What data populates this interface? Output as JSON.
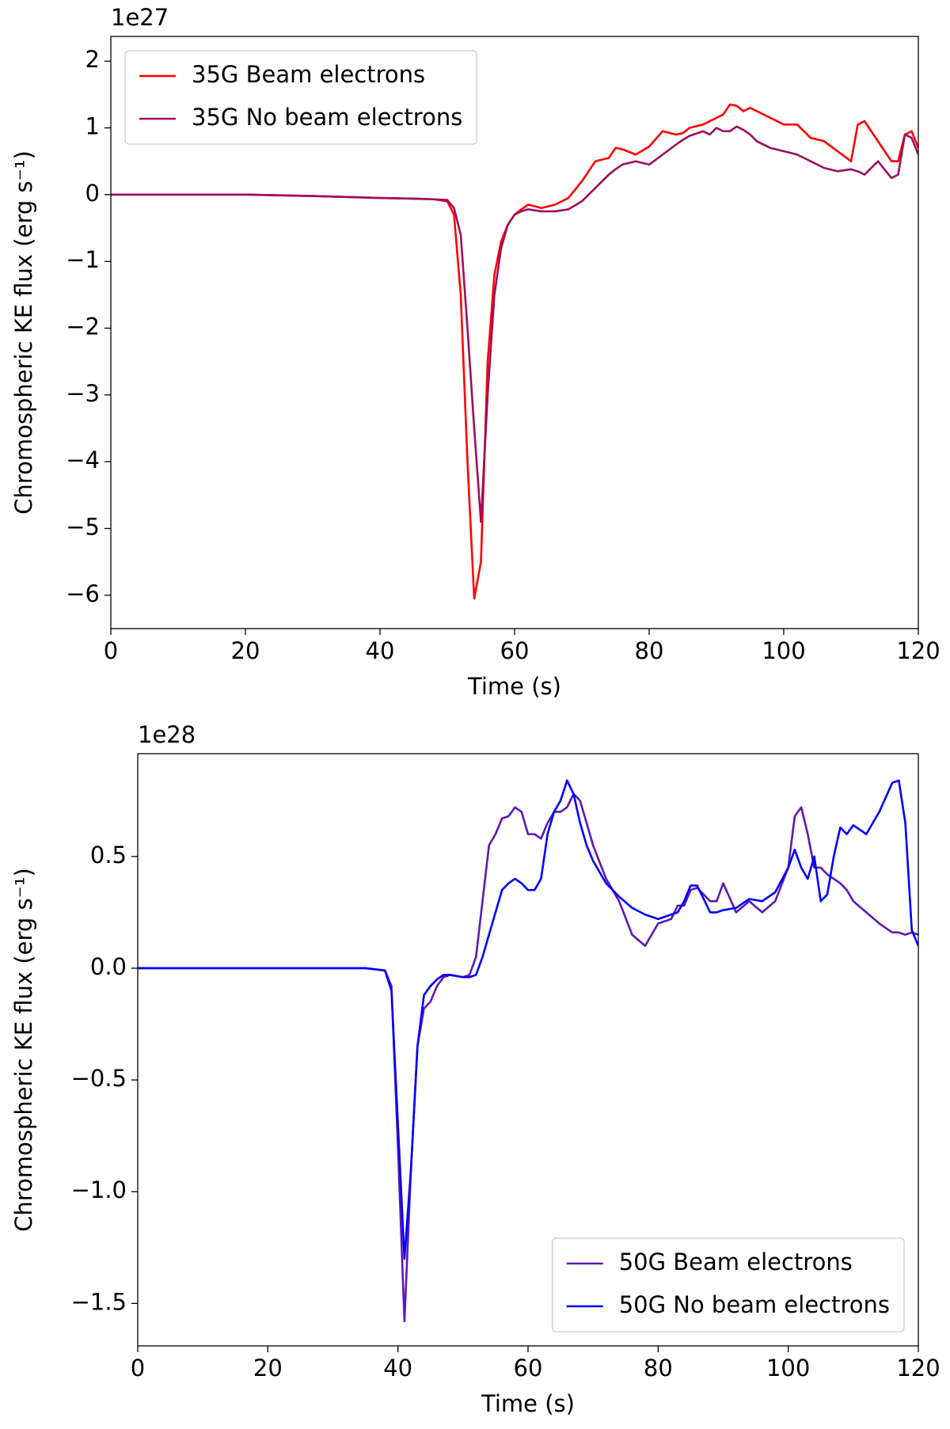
{
  "chart_data": [
    {
      "type": "line",
      "x": [
        0,
        10,
        20,
        30,
        40,
        45,
        48,
        50,
        51,
        52,
        53,
        54,
        55,
        56,
        57,
        58,
        59,
        60,
        61,
        62,
        64,
        66,
        68,
        70,
        72,
        74,
        75,
        76,
        78,
        80,
        82,
        84,
        85,
        86,
        88,
        89,
        90,
        91,
        92,
        93,
        94,
        95,
        96,
        98,
        100,
        102,
        104,
        106,
        108,
        110,
        111,
        112,
        114,
        116,
        117,
        118,
        119,
        120
      ],
      "series": [
        {
          "name": "35G Beam electrons",
          "color": "#ff0000",
          "values": [
            0,
            0,
            0,
            -0.02,
            -0.05,
            -0.06,
            -0.07,
            -0.1,
            -0.3,
            -1.5,
            -4.0,
            -6.05,
            -5.5,
            -2.5,
            -1.2,
            -0.7,
            -0.45,
            -0.3,
            -0.22,
            -0.15,
            -0.2,
            -0.15,
            -0.05,
            0.2,
            0.5,
            0.55,
            0.7,
            0.68,
            0.6,
            0.72,
            0.95,
            0.9,
            0.92,
            1.0,
            1.05,
            1.1,
            1.15,
            1.2,
            1.35,
            1.33,
            1.25,
            1.3,
            1.25,
            1.15,
            1.05,
            1.05,
            0.85,
            0.8,
            0.65,
            0.5,
            1.05,
            1.1,
            0.8,
            0.5,
            0.5,
            0.9,
            0.95,
            0.7
          ]
        },
        {
          "name": "35G No beam electrons",
          "color": "#9b0f5e",
          "values": [
            0,
            0,
            0,
            -0.02,
            -0.05,
            -0.06,
            -0.07,
            -0.08,
            -0.2,
            -0.6,
            -2.0,
            -3.5,
            -4.9,
            -3.0,
            -1.5,
            -0.8,
            -0.45,
            -0.3,
            -0.25,
            -0.22,
            -0.25,
            -0.25,
            -0.22,
            -0.1,
            0.1,
            0.3,
            0.38,
            0.45,
            0.5,
            0.45,
            0.6,
            0.75,
            0.82,
            0.88,
            0.95,
            0.9,
            1.0,
            0.95,
            0.95,
            1.02,
            0.97,
            0.9,
            0.8,
            0.7,
            0.65,
            0.6,
            0.5,
            0.4,
            0.35,
            0.38,
            0.35,
            0.3,
            0.5,
            0.25,
            0.3,
            0.9,
            0.85,
            0.6
          ]
        }
      ],
      "xlim": [
        0,
        120
      ],
      "ylim": [
        -6.5,
        2.37
      ],
      "xticks": [
        0,
        20,
        40,
        60,
        80,
        100,
        120
      ],
      "yticks": [
        {
          "value": -6,
          "label": "−6"
        },
        {
          "value": -5,
          "label": "−5"
        },
        {
          "value": -4,
          "label": "−4"
        },
        {
          "value": -3,
          "label": "−3"
        },
        {
          "value": -2,
          "label": "−2"
        },
        {
          "value": -1,
          "label": "−1"
        },
        0,
        1,
        2
      ],
      "xlabel": "Time (s)",
      "ylabel": "Chromospheric KE flux (erg s⁻¹)",
      "y_offset_label": "1e27",
      "legend": "upper left"
    },
    {
      "type": "line",
      "x": [
        0,
        10,
        20,
        30,
        35,
        38,
        39,
        40,
        41,
        42,
        43,
        44,
        45,
        46,
        47,
        48,
        50,
        51,
        52,
        53,
        54,
        55,
        56,
        57,
        58,
        59,
        60,
        61,
        62,
        63,
        64,
        65,
        66,
        67,
        68,
        69,
        70,
        72,
        74,
        76,
        78,
        80,
        82,
        83,
        84,
        85,
        86,
        88,
        89,
        90,
        92,
        94,
        96,
        98,
        100,
        101,
        102,
        103,
        104,
        105,
        106,
        107,
        108,
        109,
        110,
        112,
        114,
        116,
        117,
        118,
        119,
        120
      ],
      "series": [
        {
          "name": "50G Beam electrons",
          "color": "#5f17b5",
          "values": [
            0,
            0,
            0,
            0,
            0,
            -0.01,
            -0.08,
            -0.8,
            -1.58,
            -0.9,
            -0.35,
            -0.18,
            -0.15,
            -0.08,
            -0.04,
            -0.03,
            -0.04,
            -0.03,
            0.05,
            0.3,
            0.55,
            0.6,
            0.67,
            0.68,
            0.72,
            0.7,
            0.6,
            0.6,
            0.58,
            0.65,
            0.7,
            0.7,
            0.72,
            0.78,
            0.75,
            0.65,
            0.55,
            0.4,
            0.3,
            0.15,
            0.1,
            0.2,
            0.22,
            0.28,
            0.28,
            0.35,
            0.36,
            0.3,
            0.3,
            0.38,
            0.25,
            0.3,
            0.25,
            0.3,
            0.45,
            0.68,
            0.72,
            0.6,
            0.45,
            0.45,
            0.42,
            0.4,
            0.38,
            0.35,
            0.3,
            0.25,
            0.2,
            0.16,
            0.16,
            0.15,
            0.16,
            0.15
          ]
        },
        {
          "name": "50G No beam electrons",
          "color": "#0000ff",
          "values": [
            0,
            0,
            0,
            0,
            0,
            -0.01,
            -0.1,
            -0.7,
            -1.3,
            -0.9,
            -0.35,
            -0.12,
            -0.08,
            -0.05,
            -0.03,
            -0.03,
            -0.04,
            -0.04,
            -0.03,
            0.05,
            0.15,
            0.25,
            0.35,
            0.38,
            0.4,
            0.38,
            0.35,
            0.35,
            0.4,
            0.6,
            0.7,
            0.75,
            0.84,
            0.78,
            0.65,
            0.55,
            0.48,
            0.38,
            0.32,
            0.27,
            0.24,
            0.22,
            0.24,
            0.25,
            0.3,
            0.37,
            0.37,
            0.25,
            0.25,
            0.26,
            0.27,
            0.31,
            0.3,
            0.34,
            0.45,
            0.53,
            0.45,
            0.4,
            0.5,
            0.3,
            0.33,
            0.5,
            0.63,
            0.6,
            0.64,
            0.6,
            0.7,
            0.83,
            0.84,
            0.65,
            0.17,
            0.1
          ]
        }
      ],
      "xlim": [
        0,
        120
      ],
      "ylim": [
        -1.69,
        0.96
      ],
      "xticks": [
        0,
        20,
        40,
        60,
        80,
        100,
        120
      ],
      "yticks": [
        {
          "value": -1.5,
          "label": "−1.5"
        },
        {
          "value": -1.0,
          "label": "−1.0"
        },
        {
          "value": -0.5,
          "label": "−0.5"
        },
        {
          "value": 0,
          "label": "0.0"
        },
        0.5
      ],
      "xlabel": "Time (s)",
      "ylabel": "Chromospheric KE flux (erg s⁻¹)",
      "y_offset_label": "1e28",
      "legend": "lower right"
    }
  ]
}
